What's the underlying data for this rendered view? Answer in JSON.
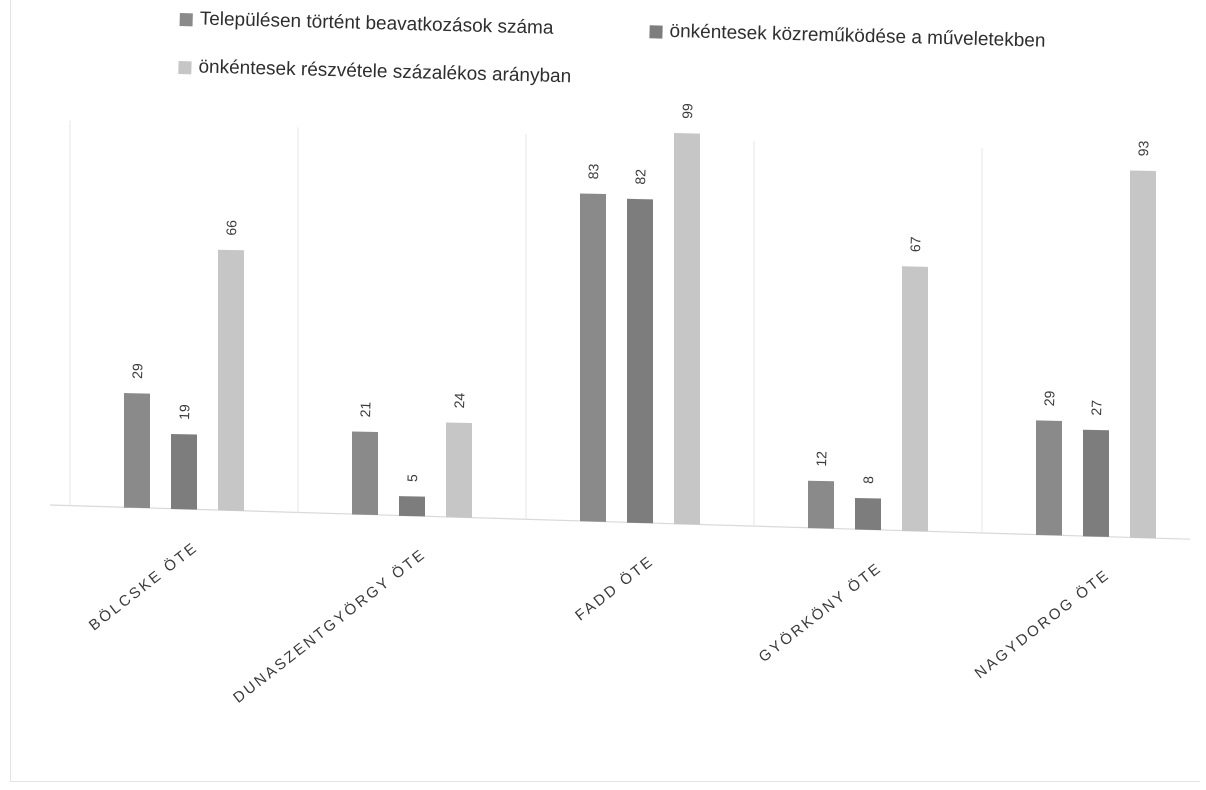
{
  "chart_data": {
    "type": "bar",
    "categories": [
      "BÖLCSKE ÖTE",
      "DUNASZENTGYÖRGY ÖTE",
      "FADD ÖTE",
      "GYÖRKÖNY ÖTE",
      "NAGYDOROG ÖTE"
    ],
    "series": [
      {
        "name": "Településen történt beavatkozások száma",
        "values": [
          29,
          21,
          83,
          12,
          29
        ],
        "color": "#8a8a8a"
      },
      {
        "name": "önkéntesek közreműködése a műveletekben",
        "values": [
          19,
          5,
          82,
          8,
          27
        ],
        "color": "#7d7d7d"
      },
      {
        "name": "önkéntesek részvétele százalékos arányban",
        "values": [
          66,
          24,
          99,
          67,
          93
        ],
        "color": "#c6c6c6"
      }
    ],
    "ylim": [
      0,
      100
    ],
    "legend_position": "top",
    "grid": "vertical separators"
  }
}
